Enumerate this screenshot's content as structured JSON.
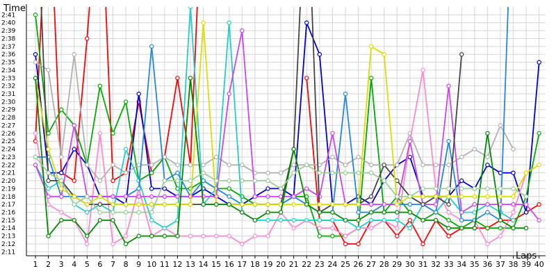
{
  "chart_data": {
    "type": "line",
    "title": "",
    "xlabel": "Laps",
    "ylabel": "Time",
    "x": [
      1,
      2,
      3,
      4,
      5,
      6,
      7,
      8,
      9,
      10,
      11,
      12,
      13,
      14,
      15,
      16,
      17,
      18,
      19,
      20,
      21,
      22,
      23,
      24,
      25,
      26,
      27,
      28,
      29,
      30,
      31,
      32,
      33,
      34,
      35,
      36,
      37,
      38,
      39,
      40
    ],
    "x_tick_labels": [
      "1",
      "2",
      "3",
      "4",
      "5",
      "6",
      "7",
      "8",
      "9",
      "10",
      "11",
      "12",
      "13",
      "14",
      "15",
      "16",
      "17",
      "18",
      "19",
      "20",
      "21",
      "22",
      "23",
      "24",
      "25",
      "26",
      "27",
      "28",
      "29",
      "30",
      "31",
      "32",
      "33",
      "34",
      "35",
      "36",
      "37",
      "38",
      "39",
      "40"
    ],
    "y_tick_labels": [
      "2:11",
      "2:12",
      "2:13",
      "2:14",
      "2:15",
      "2:16",
      "2:17",
      "2:18",
      "2:19",
      "2:20",
      "2:21",
      "2:22",
      "2:23",
      "2:24",
      "2:25",
      "2:26",
      "2:27",
      "2:28",
      "2:29",
      "2:30",
      "2:31",
      "2:32",
      "2:33",
      "2:34",
      "2:35",
      "2:36",
      "2:37",
      "2:38",
      "2:39",
      "2:40",
      "2:41"
    ],
    "y_unit_note": "seconds past 2:00",
    "ylim": [
      10.5,
      42
    ],
    "xlim": [
      0.3,
      40.5
    ],
    "grid": true,
    "legend": "none",
    "series": [
      {
        "color": "#ff0000",
        "values": [
          25,
          60,
          21,
          20,
          38,
          60,
          20,
          21,
          30,
          21,
          23,
          33,
          22,
          60,
          null,
          null,
          null,
          null,
          null,
          null,
          null,
          33,
          15,
          15,
          12,
          12,
          15,
          15,
          13,
          15,
          12,
          15,
          13,
          14,
          14,
          14,
          15,
          15,
          16,
          17
        ]
      },
      {
        "color": "#0000cc",
        "values": [
          36,
          21,
          21,
          24,
          22,
          18,
          18,
          17,
          31,
          19,
          19,
          18,
          18,
          19,
          18,
          17,
          17,
          18,
          19,
          19,
          18,
          40,
          36,
          17,
          17,
          18,
          17,
          20,
          22,
          23,
          18,
          18,
          18,
          20,
          19,
          22,
          21,
          21,
          16,
          35
        ]
      },
      {
        "color": "#00aa00",
        "values": [
          41,
          26,
          29,
          27,
          22,
          32,
          26,
          30,
          20,
          21,
          23,
          19,
          19,
          20,
          19,
          19,
          18,
          17,
          17,
          17,
          18,
          18,
          13,
          13,
          13,
          14,
          33,
          16,
          18,
          16,
          15,
          16,
          15,
          14,
          15,
          14,
          14,
          14,
          18,
          26
        ]
      },
      {
        "color": "#b0b0b0",
        "values": [
          35,
          34,
          23,
          36,
          22,
          20,
          22,
          21,
          22,
          22,
          23,
          22,
          22,
          22,
          23,
          22,
          22,
          21,
          21,
          21,
          22,
          22,
          22,
          23,
          22,
          23,
          22,
          22,
          22,
          26,
          22,
          22,
          22,
          23,
          24,
          23,
          27,
          24,
          null,
          null
        ]
      },
      {
        "color": "#ff88cc",
        "values": [
          26,
          17,
          16,
          15,
          12,
          26,
          12,
          13,
          19,
          13,
          14,
          13,
          13,
          13,
          13,
          13,
          12,
          13,
          13,
          16,
          14,
          15,
          14,
          14,
          13,
          14,
          14,
          15,
          14,
          25,
          34,
          19,
          16,
          15,
          15,
          12,
          13,
          16,
          21,
          null
        ]
      },
      {
        "color": "#22cccc",
        "values": [
          22,
          19,
          20,
          17,
          16,
          17,
          16,
          24,
          20,
          15,
          14,
          15,
          42,
          17,
          19,
          40,
          16,
          15,
          15,
          15,
          15,
          15,
          15,
          15,
          15,
          14,
          15,
          15,
          15,
          14,
          17,
          16,
          18,
          16,
          16,
          17,
          16,
          15,
          null,
          null
        ]
      },
      {
        "color": "#2288dd",
        "values": [
          23,
          23,
          18,
          18,
          18,
          18,
          18,
          18,
          19,
          37,
          20,
          21,
          18,
          20,
          19,
          18,
          17,
          17,
          17,
          17,
          18,
          17,
          16,
          16,
          31,
          16,
          16,
          17,
          17,
          17,
          17,
          16,
          25,
          15,
          15,
          16,
          15,
          60,
          null,
          null
        ]
      },
      {
        "color": "#cc44ee",
        "values": [
          22,
          18,
          18,
          27,
          18,
          18,
          18,
          18,
          18,
          18,
          18,
          18,
          18,
          18,
          18,
          31,
          39,
          18,
          18,
          18,
          18,
          19,
          18,
          26,
          17,
          17,
          17,
          17,
          17,
          25,
          17,
          17,
          32,
          16,
          17,
          17,
          17,
          17,
          17,
          15
        ]
      },
      {
        "color": "#444444",
        "values": [
          60,
          20,
          20,
          18,
          17,
          17,
          17,
          17,
          17,
          17,
          17,
          17,
          17,
          17,
          17,
          17,
          17,
          17,
          17,
          17,
          24,
          60,
          16,
          17,
          17,
          17,
          18,
          22,
          20,
          18,
          17,
          18,
          17,
          36,
          null,
          null,
          null,
          null,
          null,
          null
        ]
      },
      {
        "color": "#dddd00",
        "values": [
          33,
          24,
          19,
          18,
          17,
          18,
          17,
          17,
          17,
          17,
          17,
          17,
          17,
          40,
          17,
          17,
          17,
          17,
          17,
          17,
          17,
          17,
          17,
          17,
          17,
          17,
          37,
          36,
          17,
          18,
          18,
          18,
          18,
          18,
          18,
          18,
          18,
          18,
          21,
          22
        ]
      },
      {
        "color": "#008800",
        "values": [
          33,
          13,
          15,
          15,
          13,
          15,
          15,
          12,
          13,
          13,
          13,
          13,
          33,
          17,
          17,
          17,
          16,
          15,
          16,
          16,
          24,
          17,
          16,
          16,
          15,
          15,
          16,
          16,
          16,
          16,
          15,
          15,
          14,
          14,
          14,
          26,
          15,
          14,
          14,
          null
        ]
      },
      {
        "color": "#99cc99",
        "values": [
          23,
          21,
          20,
          17,
          18,
          16,
          16,
          16,
          16,
          16,
          20,
          20,
          20,
          21,
          20,
          20,
          20,
          20,
          20,
          19,
          21,
          22,
          21,
          21,
          21,
          21,
          21,
          20,
          18,
          18,
          19,
          19,
          19,
          19,
          19,
          19,
          19,
          19,
          18,
          null
        ]
      }
    ]
  }
}
